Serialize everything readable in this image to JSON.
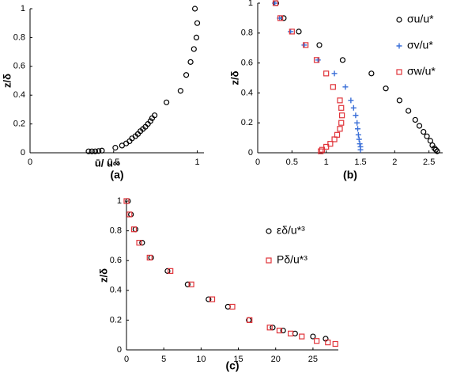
{
  "chart_data": [
    {
      "type": "scatter",
      "label": "(a)",
      "xlabel": "ū/ u∞",
      "ylabel": "z/δ",
      "xlim": [
        0,
        1.04
      ],
      "ylim": [
        0,
        1
      ],
      "xticks": [
        0,
        0.5,
        1
      ],
      "yticks": [
        0,
        0.2,
        0.4,
        0.6,
        0.8,
        1
      ],
      "series": [
        {
          "color": "#000000",
          "marker": "circle",
          "x": [
            0.986,
            1.0,
            0.995,
            0.98,
            0.96,
            0.934,
            0.9,
            0.816,
            0.745,
            0.73,
            0.72,
            0.705,
            0.69,
            0.675,
            0.66,
            0.645,
            0.63,
            0.61,
            0.595,
            0.575,
            0.55,
            0.51,
            0.43,
            0.41,
            0.39,
            0.37,
            0.35
          ],
          "values": [
            1,
            0.9,
            0.8,
            0.72,
            0.63,
            0.54,
            0.43,
            0.35,
            0.26,
            0.24,
            0.22,
            0.2,
            0.18,
            0.165,
            0.15,
            0.13,
            0.115,
            0.1,
            0.08,
            0.065,
            0.05,
            0.035,
            0.015,
            0.012,
            0.01,
            0.01,
            0.01
          ]
        }
      ]
    },
    {
      "type": "scatter",
      "label": "(b)",
      "ylabel": "z/δ",
      "xlim": [
        0,
        2.7
      ],
      "ylim": [
        0,
        1
      ],
      "xticks": [
        0,
        0.5,
        1,
        1.5,
        2,
        2.5
      ],
      "yticks": [
        0,
        0.2,
        0.4,
        0.6,
        0.8,
        1
      ],
      "series": [
        {
          "name": "σu/u*",
          "color": "#000000",
          "marker": "circle",
          "x": [
            0.27,
            0.38,
            0.6,
            0.9,
            1.24,
            1.66,
            1.87,
            2.07,
            2.2,
            2.3,
            2.36,
            2.42,
            2.47,
            2.52,
            2.55,
            2.58,
            2.6,
            2.62
          ],
          "values": [
            1,
            0.9,
            0.81,
            0.72,
            0.62,
            0.53,
            0.43,
            0.35,
            0.28,
            0.22,
            0.18,
            0.14,
            0.11,
            0.08,
            0.05,
            0.03,
            0.02,
            0.01
          ]
        },
        {
          "name": "σv/u*",
          "color": "#3a6fd8",
          "marker": "plus",
          "x": [
            0.25,
            0.32,
            0.48,
            0.68,
            0.88,
            1.12,
            1.28,
            1.36,
            1.4,
            1.43,
            1.45,
            1.46,
            1.47,
            1.48,
            1.49,
            1.5,
            1.5
          ],
          "values": [
            1,
            0.9,
            0.81,
            0.72,
            0.62,
            0.53,
            0.44,
            0.35,
            0.3,
            0.25,
            0.2,
            0.16,
            0.12,
            0.09,
            0.06,
            0.04,
            0.02
          ]
        },
        {
          "name": "σw/u*",
          "color": "#e0343a",
          "marker": "square",
          "x": [
            0.26,
            0.33,
            0.5,
            0.7,
            0.86,
            1.0,
            1.1,
            1.2,
            1.22,
            1.23,
            1.22,
            1.2,
            1.16,
            1.12,
            1.06,
            1.0,
            0.94,
            0.92
          ],
          "values": [
            1,
            0.9,
            0.81,
            0.72,
            0.62,
            0.53,
            0.44,
            0.35,
            0.3,
            0.25,
            0.2,
            0.16,
            0.12,
            0.09,
            0.06,
            0.04,
            0.02,
            0.01
          ]
        }
      ]
    },
    {
      "type": "scatter",
      "label": "(c)",
      "ylabel": "z/δ",
      "xlim": [
        0,
        28.4
      ],
      "ylim": [
        0,
        1
      ],
      "xticks": [
        0,
        5,
        10,
        15,
        20,
        25
      ],
      "yticks": [
        0,
        0.2,
        0.4,
        0.6,
        0.8,
        1
      ],
      "series": [
        {
          "name": "εδ/u*³",
          "color": "#000000",
          "marker": "circle",
          "x": [
            0.2,
            0.6,
            1.2,
            2.1,
            3.3,
            5.5,
            8.2,
            11,
            13.6,
            16.4,
            19.6,
            21,
            22.6,
            25,
            26.7
          ],
          "values": [
            1,
            0.91,
            0.81,
            0.72,
            0.62,
            0.53,
            0.44,
            0.34,
            0.29,
            0.2,
            0.15,
            0.13,
            0.11,
            0.09,
            0.075
          ]
        },
        {
          "name": "Pδ/u*³",
          "color": "#e0343a",
          "marker": "square",
          "x": [
            0,
            0.4,
            1,
            1.7,
            3.1,
            5.9,
            8.7,
            11.5,
            14.2,
            16.5,
            19.2,
            20.5,
            22,
            23.5,
            25.5,
            27,
            28
          ],
          "values": [
            1,
            0.91,
            0.81,
            0.72,
            0.62,
            0.53,
            0.44,
            0.34,
            0.29,
            0.2,
            0.15,
            0.13,
            0.11,
            0.09,
            0.06,
            0.05,
            0.04
          ]
        }
      ]
    }
  ]
}
